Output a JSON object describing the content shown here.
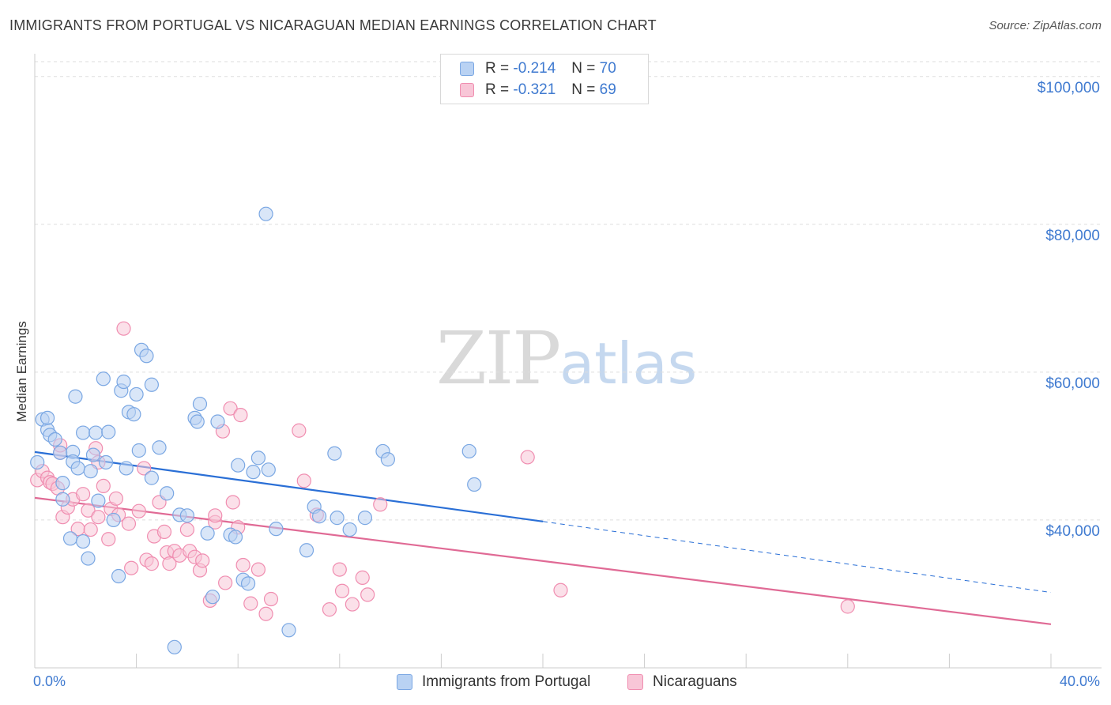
{
  "title": "IMMIGRANTS FROM PORTUGAL VS NICARAGUAN MEDIAN EARNINGS CORRELATION CHART",
  "source": "Source: ZipAtlas.com",
  "watermark": {
    "zip": "ZIP",
    "atlas": "atlas"
  },
  "colors": {
    "blue": "#7aa7e3",
    "blue_fill": "#b9d2f3",
    "blue_line": "#2a6fd6",
    "pink": "#f08db0",
    "pink_fill": "#f8c6d7",
    "pink_line": "#e06a95",
    "axis_text": "#3f7ad0"
  },
  "legend": {
    "series1": {
      "r_label": "R = ",
      "r_value": "-0.214",
      "n_label": "N = ",
      "n_value": "70"
    },
    "series2": {
      "r_label": "R = ",
      "r_value": "-0.321",
      "n_label": "N = ",
      "n_value": "69"
    }
  },
  "bottom_legend": {
    "series1": "Immigrants from Portugal",
    "series2": "Nicaraguans"
  },
  "chart_data": {
    "type": "scatter",
    "xlabel": "",
    "ylabel": "Median Earnings",
    "xlim": [
      0,
      40
    ],
    "ylim": [
      20000,
      102000
    ],
    "x_tick_labels": [
      "0.0%",
      "40.0%"
    ],
    "y_ticks": [
      {
        "value": 40000,
        "label": "$40,000"
      },
      {
        "value": 60000,
        "label": "$60,000"
      },
      {
        "value": 80000,
        "label": "$80,000"
      },
      {
        "value": 100000,
        "label": "$100,000"
      }
    ],
    "grid": true,
    "series": [
      {
        "name": "Immigrants from Portugal",
        "color": "#7aa7e3",
        "trend": {
          "x0": 0,
          "y0": 49200,
          "x1": 20,
          "y1": 39800,
          "dashed_to_x": 40,
          "dashed_to_y": 30200
        },
        "points": [
          [
            0.1,
            47800
          ],
          [
            0.3,
            53600
          ],
          [
            0.5,
            52200
          ],
          [
            0.5,
            53800
          ],
          [
            0.6,
            51500
          ],
          [
            0.8,
            50900
          ],
          [
            1.0,
            49100
          ],
          [
            1.1,
            45000
          ],
          [
            1.1,
            42800
          ],
          [
            1.4,
            37500
          ],
          [
            1.5,
            49200
          ],
          [
            1.5,
            47900
          ],
          [
            1.6,
            56700
          ],
          [
            1.7,
            47000
          ],
          [
            1.9,
            51800
          ],
          [
            1.9,
            37100
          ],
          [
            2.1,
            34800
          ],
          [
            2.2,
            46600
          ],
          [
            2.3,
            48800
          ],
          [
            2.4,
            51800
          ],
          [
            2.5,
            42600
          ],
          [
            2.7,
            59100
          ],
          [
            2.8,
            47800
          ],
          [
            2.9,
            51900
          ],
          [
            3.1,
            40000
          ],
          [
            3.3,
            32400
          ],
          [
            3.4,
            57500
          ],
          [
            3.5,
            58700
          ],
          [
            3.6,
            47000
          ],
          [
            3.7,
            54600
          ],
          [
            3.9,
            54300
          ],
          [
            4.0,
            57000
          ],
          [
            4.1,
            49400
          ],
          [
            4.2,
            63000
          ],
          [
            4.4,
            62200
          ],
          [
            4.6,
            58300
          ],
          [
            4.6,
            45700
          ],
          [
            4.9,
            49800
          ],
          [
            5.2,
            43600
          ],
          [
            5.5,
            22800
          ],
          [
            5.7,
            40700
          ],
          [
            6.0,
            40600
          ],
          [
            6.3,
            53800
          ],
          [
            6.4,
            53300
          ],
          [
            6.5,
            55700
          ],
          [
            6.8,
            38200
          ],
          [
            7.0,
            29600
          ],
          [
            7.2,
            53300
          ],
          [
            7.7,
            38000
          ],
          [
            7.9,
            37700
          ],
          [
            8.0,
            47400
          ],
          [
            8.2,
            31900
          ],
          [
            8.4,
            31400
          ],
          [
            8.6,
            46500
          ],
          [
            8.8,
            48400
          ],
          [
            9.1,
            81400
          ],
          [
            9.2,
            46800
          ],
          [
            9.5,
            38800
          ],
          [
            10.0,
            25100
          ],
          [
            10.7,
            35900
          ],
          [
            11.0,
            41800
          ],
          [
            11.2,
            40500
          ],
          [
            11.8,
            49000
          ],
          [
            11.9,
            40300
          ],
          [
            12.4,
            38700
          ],
          [
            13.0,
            40300
          ],
          [
            13.7,
            49300
          ],
          [
            13.9,
            48200
          ],
          [
            17.1,
            49300
          ],
          [
            17.3,
            44800
          ]
        ]
      },
      {
        "name": "Nicaraguans",
        "color": "#f08db0",
        "trend": {
          "x0": 0,
          "y0": 43000,
          "x1": 40,
          "y1": 25900
        },
        "points": [
          [
            0.1,
            45400
          ],
          [
            0.3,
            46600
          ],
          [
            0.5,
            45700
          ],
          [
            0.6,
            45100
          ],
          [
            0.7,
            44900
          ],
          [
            0.9,
            44300
          ],
          [
            1.0,
            49100
          ],
          [
            1.0,
            50100
          ],
          [
            1.1,
            40400
          ],
          [
            1.3,
            41700
          ],
          [
            1.5,
            42800
          ],
          [
            1.7,
            38800
          ],
          [
            1.9,
            43500
          ],
          [
            2.1,
            41300
          ],
          [
            2.2,
            38700
          ],
          [
            2.4,
            49700
          ],
          [
            2.5,
            47800
          ],
          [
            2.5,
            40400
          ],
          [
            2.7,
            44600
          ],
          [
            2.9,
            37400
          ],
          [
            3.0,
            41500
          ],
          [
            3.2,
            42900
          ],
          [
            3.3,
            40700
          ],
          [
            3.5,
            65900
          ],
          [
            3.7,
            39500
          ],
          [
            3.8,
            33500
          ],
          [
            4.1,
            41200
          ],
          [
            4.3,
            47000
          ],
          [
            4.4,
            34600
          ],
          [
            4.6,
            34100
          ],
          [
            4.7,
            37800
          ],
          [
            4.9,
            42400
          ],
          [
            5.1,
            38400
          ],
          [
            5.2,
            35600
          ],
          [
            5.3,
            34100
          ],
          [
            5.5,
            35800
          ],
          [
            5.7,
            35200
          ],
          [
            6.0,
            38700
          ],
          [
            6.1,
            35800
          ],
          [
            6.3,
            35000
          ],
          [
            6.5,
            33200
          ],
          [
            6.6,
            34500
          ],
          [
            6.9,
            29100
          ],
          [
            7.1,
            39700
          ],
          [
            7.1,
            40600
          ],
          [
            7.4,
            52000
          ],
          [
            7.5,
            31500
          ],
          [
            7.7,
            55100
          ],
          [
            7.8,
            42400
          ],
          [
            8.0,
            39000
          ],
          [
            8.1,
            54200
          ],
          [
            8.2,
            33900
          ],
          [
            8.5,
            28700
          ],
          [
            8.8,
            33300
          ],
          [
            9.1,
            27300
          ],
          [
            9.3,
            29300
          ],
          [
            10.4,
            52100
          ],
          [
            10.6,
            45300
          ],
          [
            11.1,
            40700
          ],
          [
            11.6,
            27900
          ],
          [
            12.0,
            33300
          ],
          [
            12.1,
            30400
          ],
          [
            12.5,
            28600
          ],
          [
            12.9,
            32200
          ],
          [
            13.1,
            29900
          ],
          [
            13.6,
            42100
          ],
          [
            19.4,
            48500
          ],
          [
            20.7,
            30500
          ],
          [
            32.0,
            28300
          ]
        ]
      }
    ]
  }
}
